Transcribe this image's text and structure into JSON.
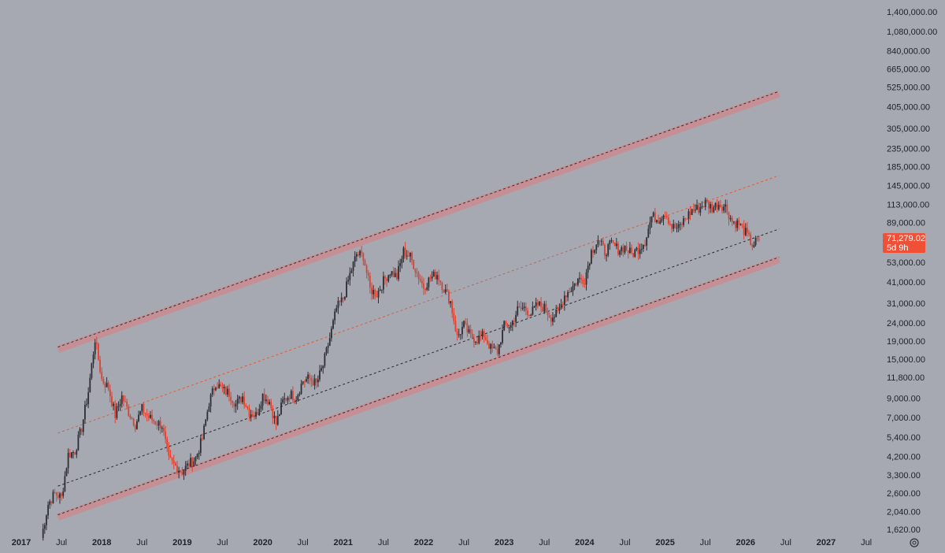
{
  "chart_data": {
    "type": "candlestick",
    "scale": "log",
    "grid": false,
    "title": "",
    "xlabel": "",
    "ylabel": "",
    "ylim": [
      1500,
      1450000
    ],
    "xlim": [
      "2017-01-01",
      "2027-10-01"
    ],
    "y_ticks": [
      "1,400,000.00",
      "1,080,000.00",
      "840,000.00",
      "665,000.00",
      "525,000.00",
      "405,000.00",
      "305,000.00",
      "235,000.00",
      "185,000.00",
      "145,000.00",
      "113,000.00",
      "89,000.00",
      "69,000.00",
      "53,000.00",
      "41,000.00",
      "31,000.00",
      "24,000.00",
      "19,000.00",
      "15,000.00",
      "11,800.00",
      "9,000.00",
      "7,000.00",
      "5,400.00",
      "4,200.00",
      "3,300.00",
      "2,600.00",
      "2,040.00",
      "1,620.00"
    ],
    "x_ticks": [
      {
        "label": "2017",
        "date": "2017-01-01",
        "year": true
      },
      {
        "label": "Jul",
        "date": "2017-07-01",
        "year": false
      },
      {
        "label": "2018",
        "date": "2018-01-01",
        "year": true
      },
      {
        "label": "Jul",
        "date": "2018-07-01",
        "year": false
      },
      {
        "label": "2019",
        "date": "2019-01-01",
        "year": true
      },
      {
        "label": "Jul",
        "date": "2019-07-01",
        "year": false
      },
      {
        "label": "2020",
        "date": "2020-01-01",
        "year": true
      },
      {
        "label": "Jul",
        "date": "2020-07-01",
        "year": false
      },
      {
        "label": "2021",
        "date": "2021-01-01",
        "year": true
      },
      {
        "label": "Jul",
        "date": "2021-07-01",
        "year": false
      },
      {
        "label": "2022",
        "date": "2022-01-01",
        "year": true
      },
      {
        "label": "Jul",
        "date": "2022-07-01",
        "year": false
      },
      {
        "label": "2023",
        "date": "2023-01-01",
        "year": true
      },
      {
        "label": "Jul",
        "date": "2023-07-01",
        "year": false
      },
      {
        "label": "2024",
        "date": "2024-01-01",
        "year": true
      },
      {
        "label": "Jul",
        "date": "2024-07-01",
        "year": false
      },
      {
        "label": "2025",
        "date": "2025-01-01",
        "year": true
      },
      {
        "label": "Jul",
        "date": "2025-07-01",
        "year": false
      },
      {
        "label": "2026",
        "date": "2026-01-01",
        "year": true
      },
      {
        "label": "Jul",
        "date": "2026-07-01",
        "year": false
      },
      {
        "label": "2027",
        "date": "2027-01-01",
        "year": true
      },
      {
        "label": "Jul",
        "date": "2027-07-01",
        "year": false
      }
    ],
    "price_series": [
      [
        "2017-04-01",
        1450
      ],
      [
        "2017-05-01",
        2250
      ],
      [
        "2017-06-01",
        2600
      ],
      [
        "2017-07-01",
        2450
      ],
      [
        "2017-08-01",
        4300
      ],
      [
        "2017-09-01",
        4500
      ],
      [
        "2017-10-01",
        6100
      ],
      [
        "2017-11-01",
        9800
      ],
      [
        "2017-12-01",
        19500
      ],
      [
        "2018-01-01",
        11500
      ],
      [
        "2018-02-01",
        10300
      ],
      [
        "2018-03-01",
        7200
      ],
      [
        "2018-04-01",
        9200
      ],
      [
        "2018-05-01",
        7500
      ],
      [
        "2018-06-01",
        6400
      ],
      [
        "2018-07-01",
        7800
      ],
      [
        "2018-08-01",
        7000
      ],
      [
        "2018-09-01",
        6600
      ],
      [
        "2018-10-01",
        6300
      ],
      [
        "2018-11-01",
        4000
      ],
      [
        "2018-12-01",
        3700
      ],
      [
        "2019-01-01",
        3450
      ],
      [
        "2019-02-01",
        3800
      ],
      [
        "2019-03-01",
        4100
      ],
      [
        "2019-04-01",
        5300
      ],
      [
        "2019-05-01",
        8500
      ],
      [
        "2019-06-01",
        11000
      ],
      [
        "2019-07-01",
        10000
      ],
      [
        "2019-08-01",
        9600
      ],
      [
        "2019-09-01",
        8300
      ],
      [
        "2019-10-01",
        9200
      ],
      [
        "2019-11-01",
        7500
      ],
      [
        "2019-12-01",
        7200
      ],
      [
        "2020-01-01",
        9350
      ],
      [
        "2020-02-01",
        8600
      ],
      [
        "2020-03-01",
        6400
      ],
      [
        "2020-04-01",
        8600
      ],
      [
        "2020-05-01",
        9450
      ],
      [
        "2020-06-01",
        9150
      ],
      [
        "2020-07-01",
        11300
      ],
      [
        "2020-08-01",
        11650
      ],
      [
        "2020-09-01",
        10800
      ],
      [
        "2020-10-01",
        13800
      ],
      [
        "2020-11-01",
        19700
      ],
      [
        "2020-12-01",
        29000
      ],
      [
        "2021-01-01",
        33100
      ],
      [
        "2021-02-01",
        45200
      ],
      [
        "2021-03-01",
        58900
      ],
      [
        "2021-04-01",
        57700
      ],
      [
        "2021-05-01",
        37300
      ],
      [
        "2021-06-01",
        35000
      ],
      [
        "2021-07-01",
        41500
      ],
      [
        "2021-08-01",
        47100
      ],
      [
        "2021-09-01",
        43800
      ],
      [
        "2021-10-01",
        61300
      ],
      [
        "2021-11-01",
        57000
      ],
      [
        "2021-12-01",
        46300
      ],
      [
        "2022-01-01",
        38500
      ],
      [
        "2022-02-01",
        43200
      ],
      [
        "2022-03-01",
        45500
      ],
      [
        "2022-04-01",
        37700
      ],
      [
        "2022-05-01",
        31800
      ],
      [
        "2022-06-01",
        19900
      ],
      [
        "2022-07-01",
        23300
      ],
      [
        "2022-08-01",
        20000
      ],
      [
        "2022-09-01",
        19400
      ],
      [
        "2022-10-01",
        20500
      ],
      [
        "2022-11-01",
        17200
      ],
      [
        "2022-12-01",
        16500
      ],
      [
        "2023-01-01",
        23100
      ],
      [
        "2023-02-01",
        23150
      ],
      [
        "2023-03-01",
        28500
      ],
      [
        "2023-04-01",
        29300
      ],
      [
        "2023-05-01",
        27200
      ],
      [
        "2023-06-01",
        30500
      ],
      [
        "2023-07-01",
        29200
      ],
      [
        "2023-08-01",
        26000
      ],
      [
        "2023-09-01",
        27000
      ],
      [
        "2023-10-01",
        34500
      ],
      [
        "2023-11-01",
        37700
      ],
      [
        "2023-12-01",
        42300
      ],
      [
        "2024-01-01",
        42600
      ],
      [
        "2024-02-01",
        61200
      ],
      [
        "2024-03-01",
        71300
      ],
      [
        "2024-04-01",
        60700
      ],
      [
        "2024-05-01",
        67500
      ],
      [
        "2024-06-01",
        62700
      ],
      [
        "2024-07-01",
        64600
      ],
      [
        "2024-08-01",
        59000
      ],
      [
        "2024-09-01",
        63300
      ],
      [
        "2024-10-01",
        70200
      ],
      [
        "2024-11-01",
        96400
      ],
      [
        "2024-12-01",
        93400
      ],
      [
        "2025-01-01",
        102400
      ],
      [
        "2025-02-01",
        84300
      ],
      [
        "2025-03-01",
        82500
      ],
      [
        "2025-04-01",
        94200
      ],
      [
        "2025-05-01",
        104600
      ],
      [
        "2025-06-01",
        107100
      ],
      [
        "2025-07-01",
        115700
      ],
      [
        "2025-08-01",
        108200
      ],
      [
        "2025-09-01",
        114000
      ],
      [
        "2025-10-01",
        109500
      ],
      [
        "2025-11-01",
        90300
      ],
      [
        "2025-12-01",
        87500
      ],
      [
        "2026-01-01",
        78000
      ],
      [
        "2026-02-01",
        66500
      ],
      [
        "2026-03-01",
        71279
      ]
    ],
    "annotations": {
      "upper_channel_line": {
        "from": [
          "2017-06-15",
          17000
        ],
        "to": [
          "2026-06-01",
          480000
        ],
        "style": "dashed-thick-band"
      },
      "lower_channel_line": {
        "from": [
          "2017-06-15",
          1900
        ],
        "to": [
          "2026-06-01",
          55000
        ],
        "style": "dashed-thick-band"
      },
      "midline_black": {
        "from": [
          "2017-06-15",
          2850
        ],
        "to": [
          "2026-06-01",
          82000
        ],
        "style": "dashed"
      },
      "midline_orange": {
        "from": [
          "2017-06-15",
          5700
        ],
        "to": [
          "2026-06-01",
          165000
        ],
        "style": "dashed"
      }
    },
    "last_price": {
      "value": "71,279.02",
      "countdown": "5d 9h",
      "color": "#ef5036"
    },
    "colors": {
      "background": "#a7a9b2",
      "up_candle": "#2c2e33",
      "down_candle": "#e0412f",
      "channel_band": "#c49095",
      "midline_orange": "#d4613e",
      "midline_black": "#2a2a2a"
    },
    "footer_icon": "settings-gear-icon"
  }
}
